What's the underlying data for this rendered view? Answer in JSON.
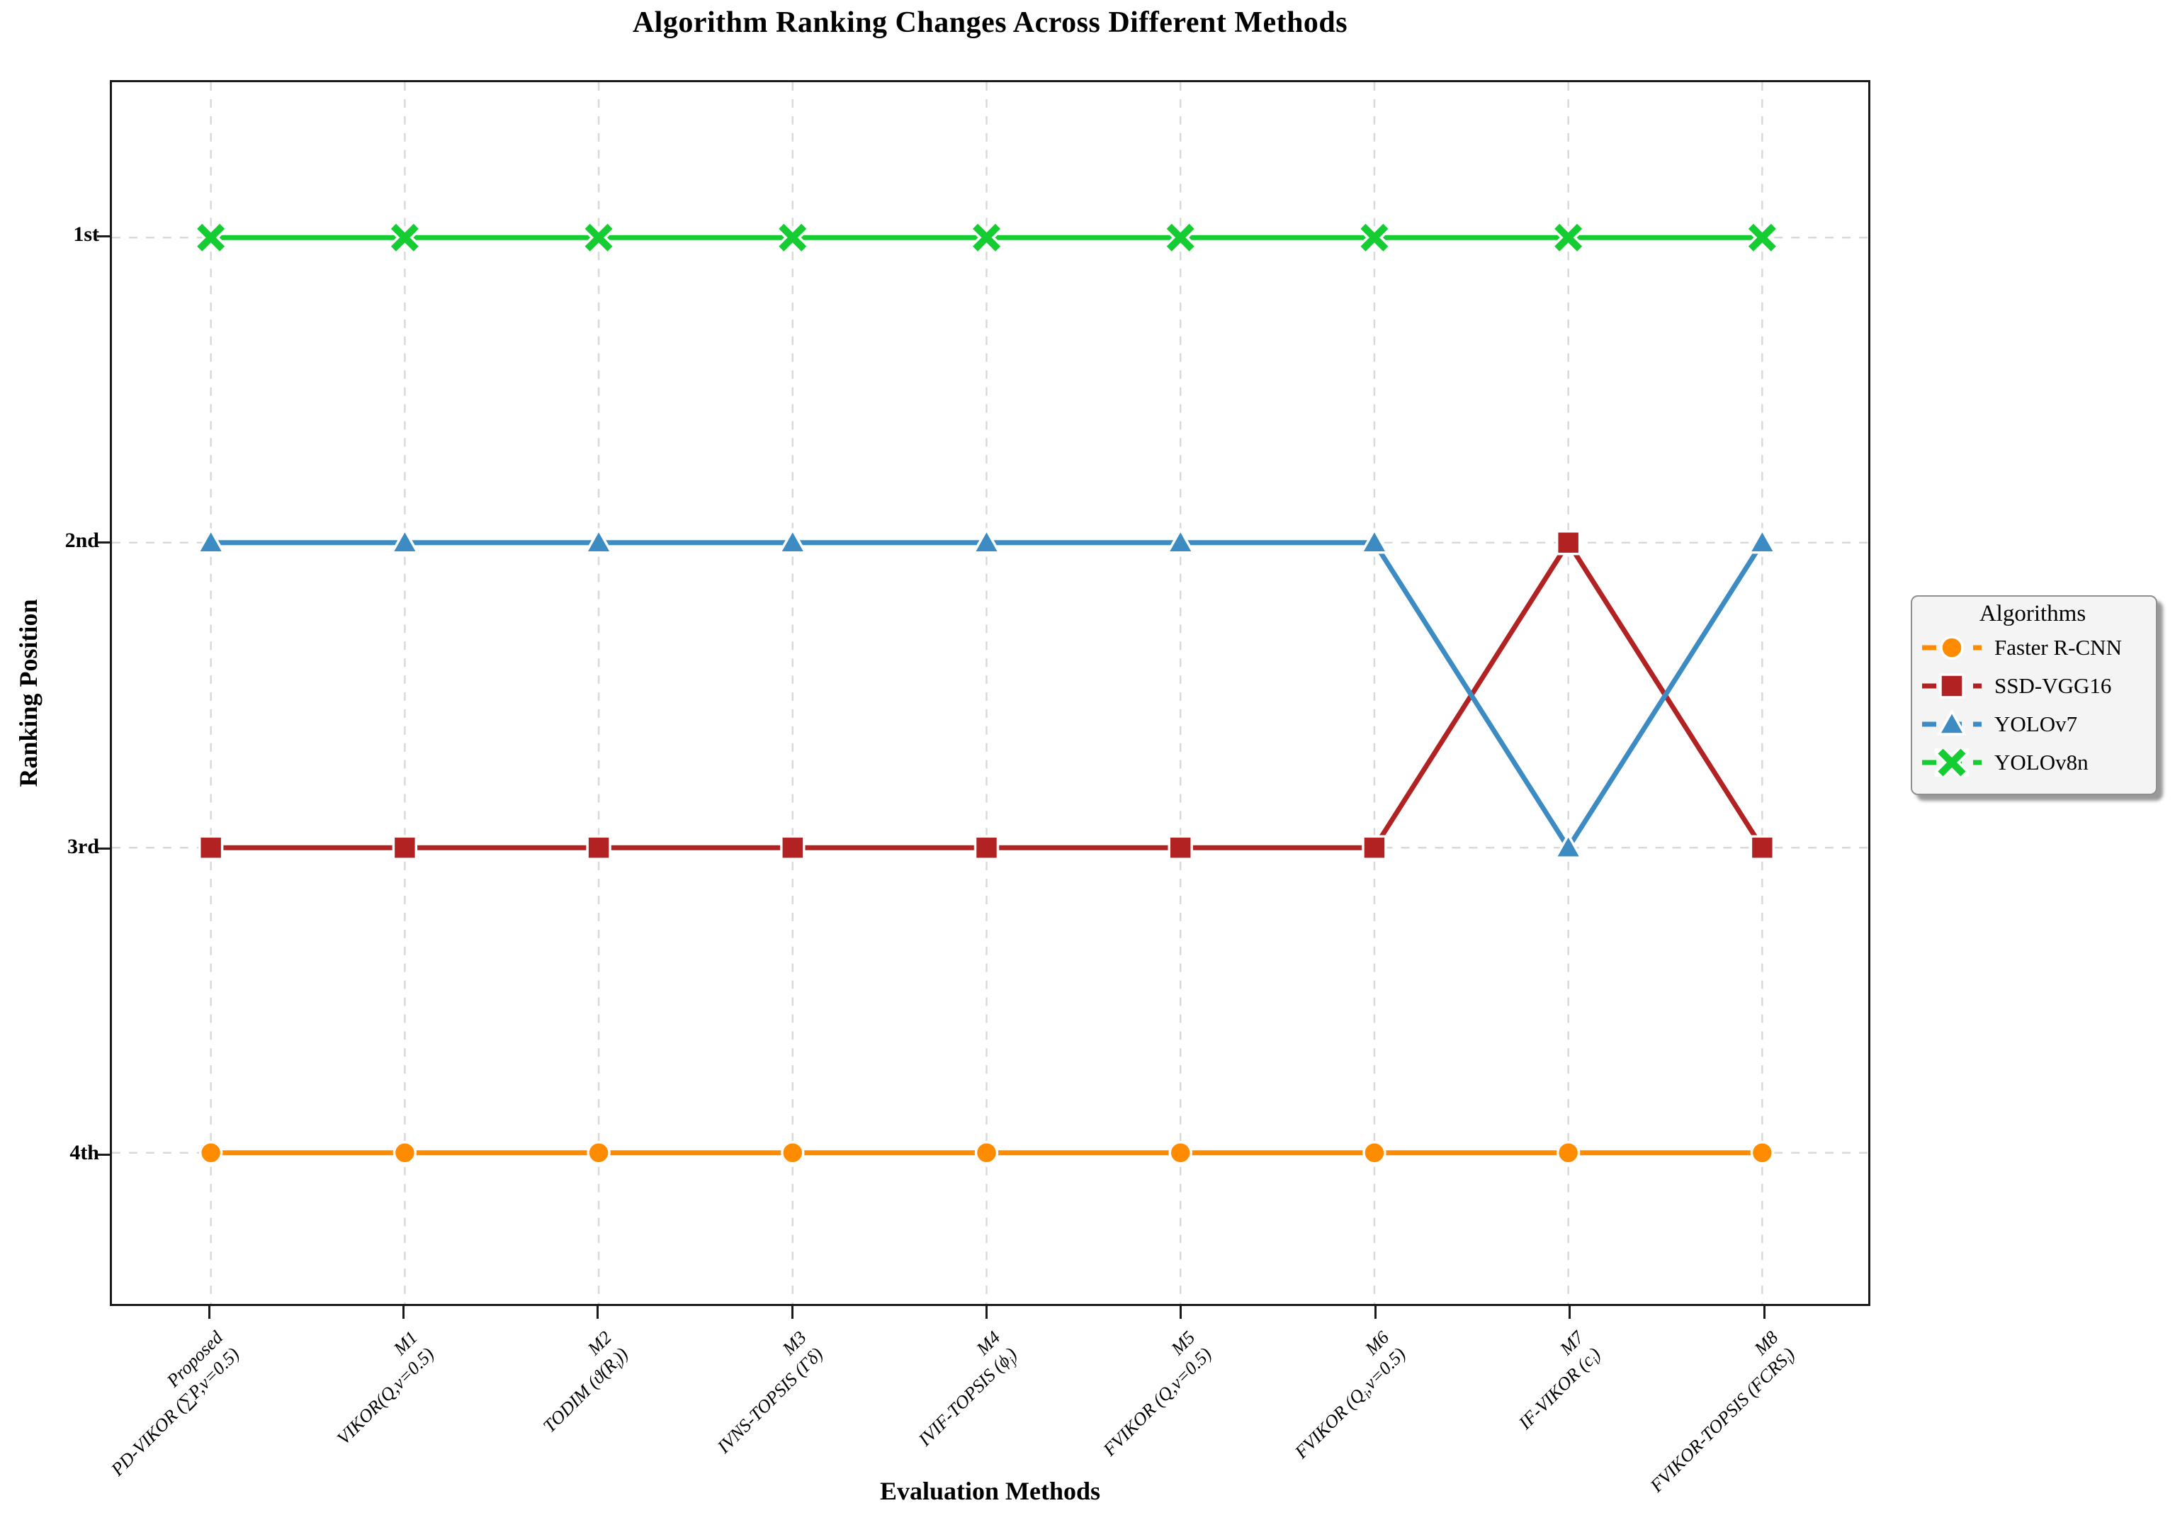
{
  "title": "Algorithm Ranking Changes Across Different Methods",
  "axes": {
    "x_label": "Evaluation Methods",
    "y_label": "Ranking Position",
    "y_ticks": [
      "1st",
      "2nd",
      "3rd",
      "4th"
    ]
  },
  "legend": {
    "title": "Algorithms",
    "position": "right-of-plot"
  },
  "colors": {
    "faster_rcnn": "#FF8C00",
    "ssd_vgg16": "#B22222",
    "yolov7": "#3C8CC3",
    "yolov8n": "#15CD32",
    "grid": "#d9d9d9",
    "spine": "#1a1a1a",
    "marker_edge": "#ffffff",
    "legend_bg": "#f4f4f4"
  },
  "chart_data": {
    "type": "line",
    "title": "Algorithm Ranking Changes Across Different Methods",
    "xlabel": "Evaluation Methods",
    "ylabel": "Ranking Position",
    "grid": true,
    "grid_style": "dashed",
    "y_axis_inverted": true,
    "ylim": [
      1,
      4
    ],
    "y_tick_labels": [
      "1st",
      "2nd",
      "3rd",
      "4th"
    ],
    "x_tick_lines": [
      [
        "Proposed",
        "PD-VIKOR (∑P,v=0.5)"
      ],
      [
        "M1",
        "VIKOR(Q,v=0.5)"
      ],
      [
        "M2",
        "TODIM (ϑ(Rᵢ))"
      ],
      [
        "M3",
        "IVNS-TOPSIS (Γδ)"
      ],
      [
        "M4",
        "IVIF-TOPSIS (ϕⱼ)"
      ],
      [
        "M5",
        "FVIKOR (Q,v=0.5)"
      ],
      [
        "M6",
        "FVIKOR (Qᵢ,v=0.5)"
      ],
      [
        "M7",
        "IF-VIKOR (cᵢ)"
      ],
      [
        "M8",
        "FVIKOR-TOPSIS (FCRSᵢ)"
      ]
    ],
    "legend_title": "Algorithms",
    "legend_position": "right",
    "series": [
      {
        "name": "Faster R-CNN",
        "color": "#FF8C00",
        "marker": "circle",
        "linestyle_legend": "dashed",
        "values": [
          4,
          4,
          4,
          4,
          4,
          4,
          4,
          4,
          4
        ]
      },
      {
        "name": "SSD-VGG16",
        "color": "#B22222",
        "marker": "square",
        "linestyle_legend": "dashed",
        "values": [
          3,
          3,
          3,
          3,
          3,
          3,
          3,
          2,
          3
        ]
      },
      {
        "name": "YOLOv7",
        "color": "#3C8CC3",
        "marker": "triangle",
        "linestyle_legend": "dashed",
        "values": [
          2,
          2,
          2,
          2,
          2,
          2,
          2,
          3,
          2
        ]
      },
      {
        "name": "YOLOv8n",
        "color": "#15CD32",
        "marker": "x",
        "linestyle_legend": "dashed",
        "values": [
          1,
          1,
          1,
          1,
          1,
          1,
          1,
          1,
          1
        ]
      }
    ]
  }
}
